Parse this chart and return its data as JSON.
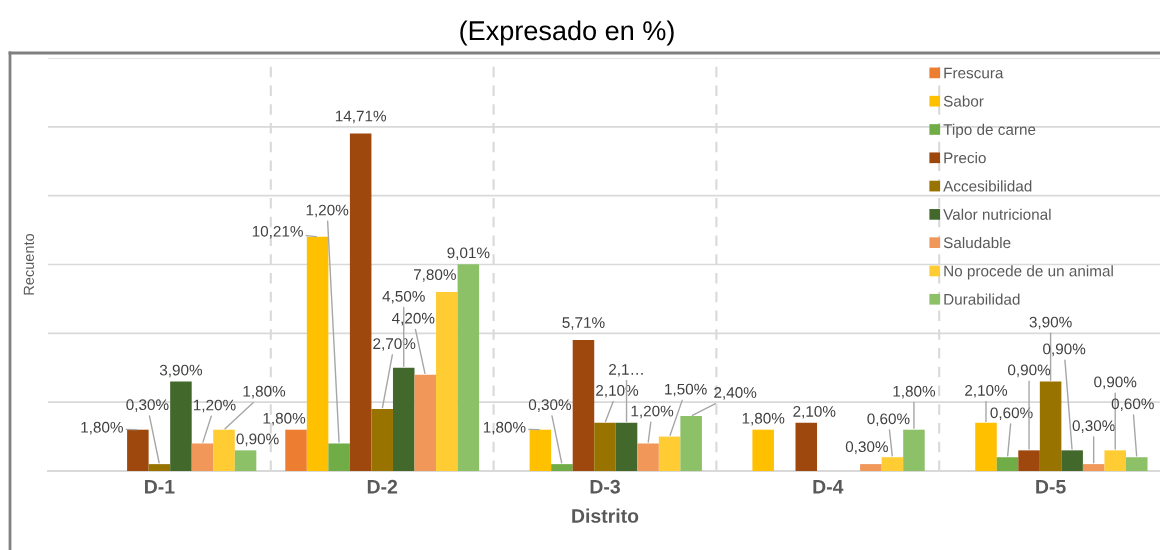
{
  "chart_data": {
    "type": "bar",
    "title": "(Expresado en %)",
    "xlabel": "Distrito",
    "ylabel": "Recuento",
    "categories": [
      "D-1",
      "D-2",
      "D-3",
      "D-4",
      "D-5"
    ],
    "series": [
      {
        "name": "Frescura",
        "color": "#ed7d31",
        "values": [
          null,
          1.8,
          null,
          null,
          null
        ],
        "value_labels": [
          null,
          "1,80%",
          null,
          null,
          null
        ]
      },
      {
        "name": "Sabor",
        "color": "#ffc000",
        "values": [
          null,
          10.21,
          1.8,
          1.8,
          2.1
        ],
        "value_labels": [
          null,
          "10,21%",
          "1,80%",
          "1,80%",
          "2,10%"
        ]
      },
      {
        "name": "Tipo de carne",
        "color": "#70ad47",
        "values": [
          null,
          1.2,
          0.3,
          null,
          0.6
        ],
        "value_labels": [
          null,
          "1,20%",
          "0,30%",
          null,
          "0,60%"
        ]
      },
      {
        "name": "Precio",
        "color": "#9e480e",
        "values": [
          1.8,
          14.71,
          5.71,
          2.1,
          0.9
        ],
        "value_labels": [
          "1,80%",
          "14,71%",
          "5,71%",
          "2,10%",
          "0,90%"
        ]
      },
      {
        "name": "Accesibilidad",
        "color": "#997300",
        "values": [
          0.3,
          2.7,
          2.1,
          null,
          3.9
        ],
        "value_labels": [
          "0,30%",
          "2,70%",
          "2,10%",
          null,
          "3,90%"
        ]
      },
      {
        "name": "Valor nutricional",
        "color": "#43682b",
        "values": [
          3.9,
          4.5,
          2.1,
          null,
          0.9
        ],
        "value_labels": [
          "3,90%",
          "4,50%",
          "2,1…",
          null,
          "0,90%"
        ]
      },
      {
        "name": "Saludable",
        "color": "#f1975a",
        "values": [
          1.2,
          4.2,
          1.2,
          0.3,
          0.3
        ],
        "value_labels": [
          "1,20%",
          "4,20%",
          "1,20%",
          "0,30%",
          "0,30%"
        ]
      },
      {
        "name": "No procede de un animal",
        "color": "#ffcd33",
        "values": [
          1.8,
          7.8,
          1.5,
          0.6,
          0.9
        ],
        "value_labels": [
          "1,80%",
          "7,80%",
          "1,50%",
          "0,60%",
          "0,90%"
        ]
      },
      {
        "name": "Durabilidad",
        "color": "#8cc168",
        "values": [
          0.9,
          9.01,
          2.4,
          1.8,
          0.6
        ],
        "value_labels": [
          "0,90%",
          "9,01%",
          "2,40%",
          "1,80%",
          "0,60%"
        ]
      }
    ],
    "ylim": [
      0,
      18
    ],
    "yticks": [
      {
        "value": 0,
        "label": null
      },
      {
        "value": 3,
        "label": null
      },
      {
        "value": 6,
        "label": null
      },
      {
        "value": 9,
        "label": null
      },
      {
        "value": 12,
        "label": null
      },
      {
        "value": 15,
        "label": null
      },
      {
        "value": 18,
        "label": null
      }
    ],
    "tick_labels": "x",
    "grid": true,
    "legend": "top right"
  }
}
